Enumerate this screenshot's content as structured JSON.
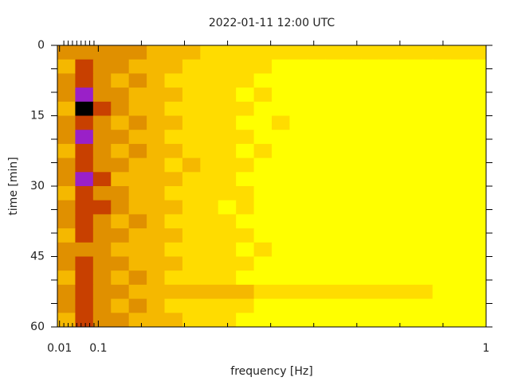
{
  "chart_data": {
    "type": "heatmap",
    "title": "2022-01-11 12:00 UTC",
    "xlabel": "frequency [Hz]",
    "ylabel": "time [min]",
    "xlim": [
      0.005,
      1
    ],
    "xticks": [
      0.01,
      0.1,
      1
    ],
    "xminorticks": [
      0.02,
      0.03,
      0.04,
      0.05,
      0.06,
      0.07,
      0.08,
      0.09,
      0.2,
      0.3,
      0.4,
      0.5,
      0.6,
      0.7,
      0.8,
      0.9
    ],
    "ylim": [
      0,
      60
    ],
    "yticks": [
      0,
      15,
      30,
      45,
      60
    ],
    "yminorticks": [
      5,
      10,
      20,
      25,
      35,
      40,
      50,
      55
    ],
    "y_inverted": true,
    "colors": [
      "#ffff00",
      "#ffdc00",
      "#f5b800",
      "#e09000",
      "#c84000",
      "#9a20c8",
      "#000000"
    ],
    "z": [
      [
        3,
        3,
        3,
        3,
        3,
        2,
        2,
        2,
        1,
        1,
        1,
        1,
        1,
        1,
        1,
        1,
        1,
        1,
        1,
        1,
        1,
        1,
        1,
        1
      ],
      [
        2,
        4,
        3,
        3,
        2,
        2,
        2,
        1,
        1,
        1,
        1,
        1,
        0,
        0,
        0,
        0,
        0,
        0,
        0,
        0,
        0,
        0,
        0,
        0
      ],
      [
        3,
        4,
        3,
        2,
        3,
        2,
        1,
        1,
        1,
        1,
        1,
        0,
        0,
        0,
        0,
        0,
        0,
        0,
        0,
        0,
        0,
        0,
        0,
        0
      ],
      [
        3,
        5,
        3,
        3,
        2,
        2,
        2,
        1,
        1,
        1,
        0,
        1,
        0,
        0,
        0,
        0,
        0,
        0,
        0,
        0,
        0,
        0,
        0,
        0
      ],
      [
        2,
        6,
        4,
        3,
        2,
        2,
        1,
        1,
        1,
        1,
        1,
        0,
        0,
        0,
        0,
        0,
        0,
        0,
        0,
        0,
        0,
        0,
        0,
        0
      ],
      [
        3,
        4,
        3,
        2,
        3,
        2,
        2,
        1,
        1,
        1,
        0,
        0,
        1,
        0,
        0,
        0,
        0,
        0,
        0,
        0,
        0,
        0,
        0,
        0
      ],
      [
        3,
        5,
        3,
        3,
        2,
        2,
        1,
        1,
        1,
        1,
        1,
        0,
        0,
        0,
        0,
        0,
        0,
        0,
        0,
        0,
        0,
        0,
        0,
        0
      ],
      [
        2,
        4,
        3,
        2,
        3,
        2,
        2,
        1,
        1,
        1,
        0,
        1,
        0,
        0,
        0,
        0,
        0,
        0,
        0,
        0,
        0,
        0,
        0,
        0
      ],
      [
        3,
        4,
        3,
        3,
        2,
        2,
        1,
        2,
        1,
        1,
        1,
        0,
        0,
        0,
        0,
        0,
        0,
        0,
        0,
        0,
        0,
        0,
        0,
        0
      ],
      [
        3,
        5,
        4,
        2,
        2,
        2,
        2,
        1,
        1,
        1,
        0,
        0,
        0,
        0,
        0,
        0,
        0,
        0,
        0,
        0,
        0,
        0,
        0,
        0
      ],
      [
        2,
        4,
        3,
        3,
        2,
        2,
        1,
        1,
        1,
        1,
        1,
        0,
        0,
        0,
        0,
        0,
        0,
        0,
        0,
        0,
        0,
        0,
        0,
        0
      ],
      [
        3,
        4,
        4,
        3,
        2,
        2,
        2,
        1,
        1,
        0,
        1,
        0,
        0,
        0,
        0,
        0,
        0,
        0,
        0,
        0,
        0,
        0,
        0,
        0
      ],
      [
        3,
        4,
        3,
        2,
        3,
        2,
        1,
        1,
        1,
        1,
        0,
        0,
        0,
        0,
        0,
        0,
        0,
        0,
        0,
        0,
        0,
        0,
        0,
        0
      ],
      [
        2,
        4,
        3,
        3,
        2,
        2,
        2,
        1,
        1,
        1,
        1,
        0,
        0,
        0,
        0,
        0,
        0,
        0,
        0,
        0,
        0,
        0,
        0,
        0
      ],
      [
        3,
        3,
        3,
        2,
        2,
        2,
        1,
        1,
        1,
        1,
        0,
        1,
        0,
        0,
        0,
        0,
        0,
        0,
        0,
        0,
        0,
        0,
        0,
        0
      ],
      [
        3,
        4,
        3,
        3,
        2,
        2,
        2,
        1,
        1,
        1,
        1,
        0,
        0,
        0,
        0,
        0,
        0,
        0,
        0,
        0,
        0,
        0,
        0,
        0
      ],
      [
        2,
        4,
        3,
        2,
        3,
        2,
        1,
        1,
        1,
        1,
        0,
        0,
        0,
        0,
        0,
        0,
        0,
        0,
        0,
        0,
        0,
        0,
        0,
        0
      ],
      [
        3,
        4,
        3,
        3,
        2,
        2,
        2,
        2,
        2,
        2,
        2,
        1,
        1,
        1,
        1,
        1,
        1,
        1,
        1,
        1,
        1,
        0,
        0,
        0
      ],
      [
        3,
        4,
        3,
        2,
        3,
        2,
        1,
        1,
        1,
        1,
        1,
        0,
        0,
        0,
        0,
        0,
        0,
        0,
        0,
        0,
        0,
        0,
        0,
        0
      ],
      [
        2,
        4,
        3,
        3,
        2,
        2,
        2,
        1,
        1,
        1,
        0,
        0,
        0,
        0,
        0,
        0,
        0,
        0,
        0,
        0,
        0,
        0,
        0,
        0
      ]
    ]
  }
}
